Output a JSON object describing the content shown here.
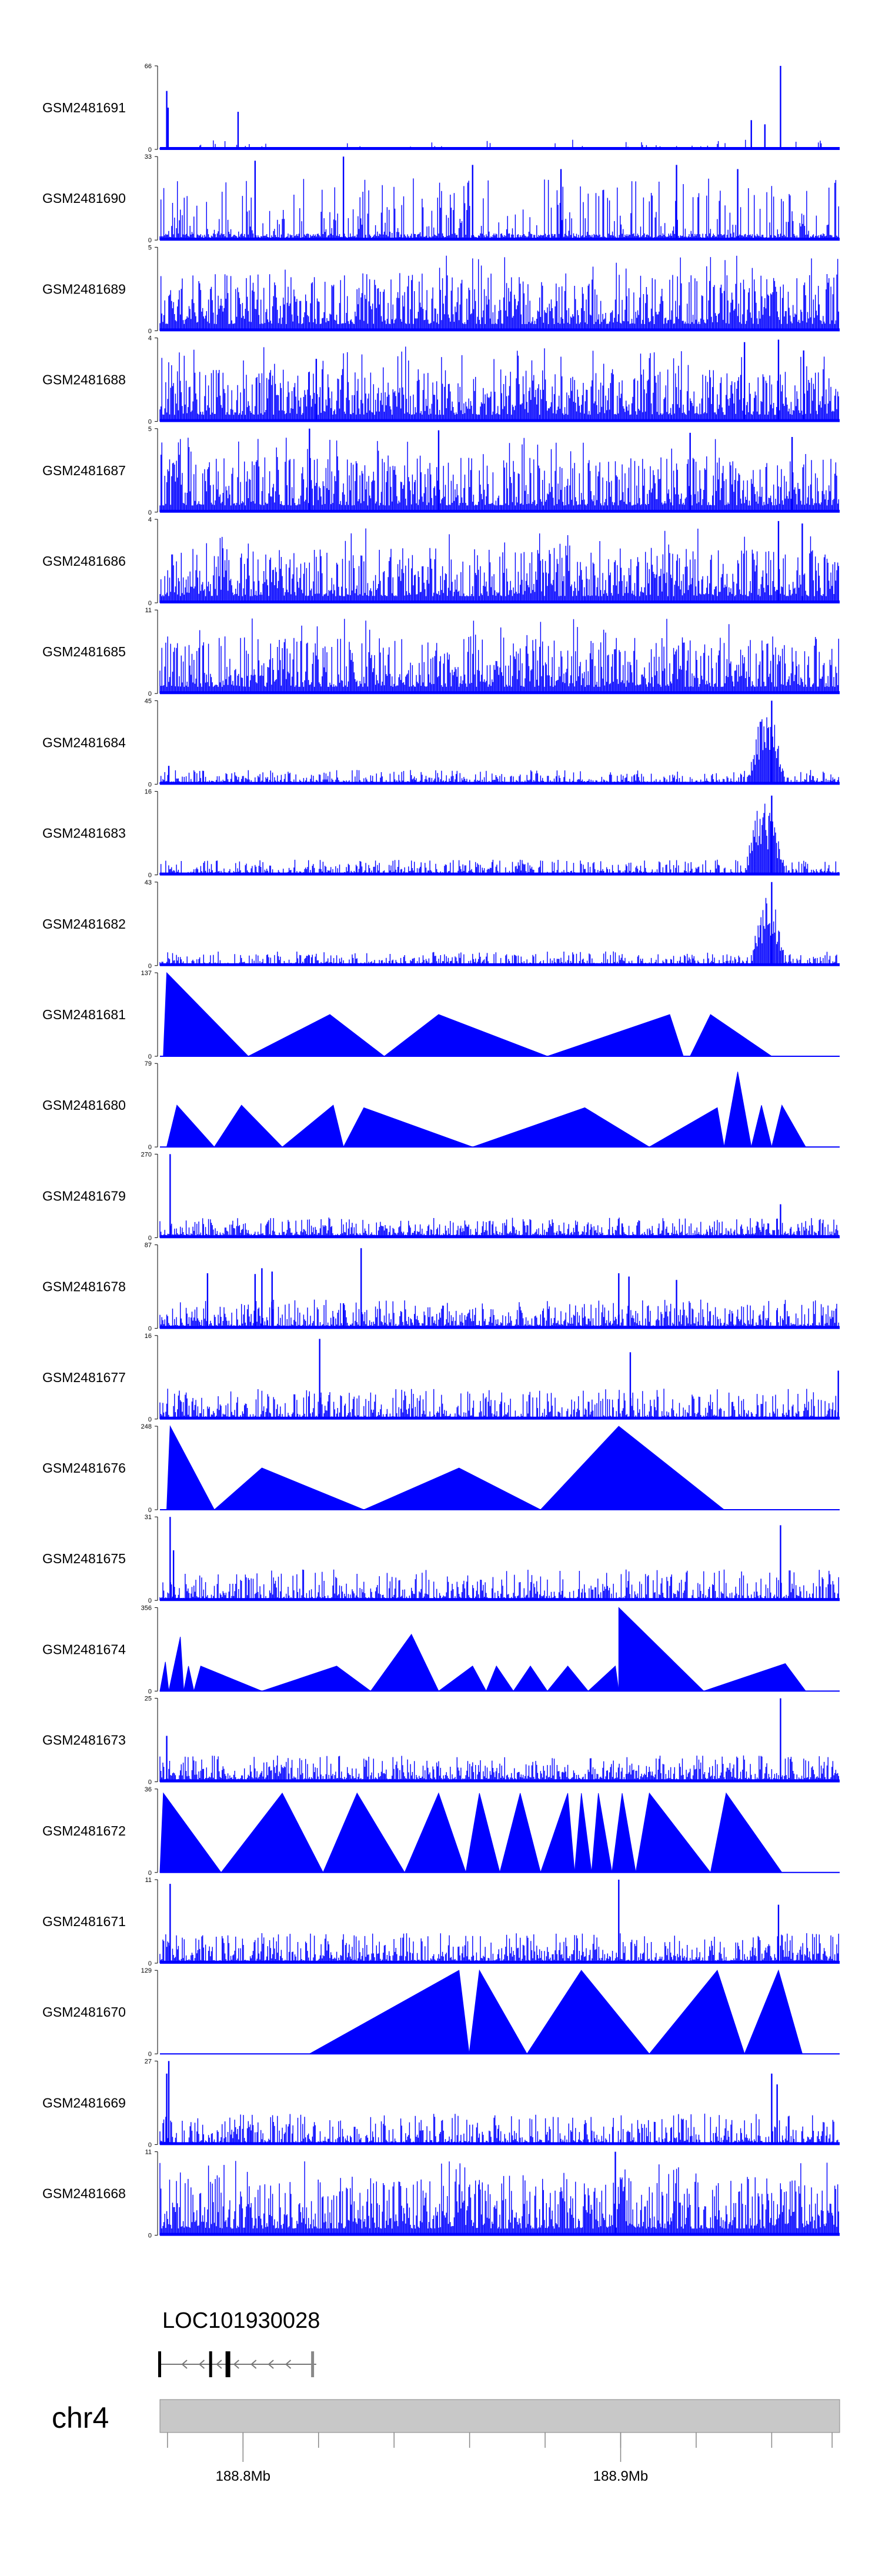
{
  "chart_data": {
    "type": "genome-coverage-tracks",
    "chromosome": "chr4",
    "region_mb": [
      188.778,
      188.958
    ],
    "color": "#0000ff",
    "tracks": [
      {
        "name": "GSM2481691",
        "ymin": 0,
        "ymax": 66,
        "style": "spiky",
        "density": 0.15,
        "peaks": [
          {
            "x": 0.01,
            "h": 0.7
          },
          {
            "x": 0.012,
            "h": 0.5
          },
          {
            "x": 0.115,
            "h": 0.45
          },
          {
            "x": 0.87,
            "h": 0.35
          },
          {
            "x": 0.89,
            "h": 0.3
          },
          {
            "x": 0.913,
            "h": 1.0
          }
        ]
      },
      {
        "name": "GSM2481690",
        "ymin": 0,
        "ymax": 33,
        "style": "mixed",
        "density": 0.45,
        "peaks": [
          {
            "x": 0.14,
            "h": 0.95
          },
          {
            "x": 0.27,
            "h": 1.0
          },
          {
            "x": 0.46,
            "h": 0.9
          },
          {
            "x": 0.59,
            "h": 0.85
          },
          {
            "x": 0.76,
            "h": 0.9
          },
          {
            "x": 0.85,
            "h": 0.85
          }
        ]
      },
      {
        "name": "GSM2481689",
        "ymin": 0,
        "ymax": 5,
        "style": "noisy",
        "density": 0.5,
        "peaks": []
      },
      {
        "name": "GSM2481688",
        "ymin": 0,
        "ymax": 4,
        "style": "noisy",
        "density": 0.4,
        "peaks": [
          {
            "x": 0.23,
            "h": 0.75
          },
          {
            "x": 0.86,
            "h": 0.95
          },
          {
            "x": 0.91,
            "h": 0.98
          },
          {
            "x": 0.947,
            "h": 0.85
          }
        ]
      },
      {
        "name": "GSM2481687",
        "ymin": 0,
        "ymax": 5,
        "style": "noisy",
        "density": 0.45,
        "peaks": [
          {
            "x": 0.22,
            "h": 1.0
          },
          {
            "x": 0.41,
            "h": 0.98
          },
          {
            "x": 0.78,
            "h": 0.95
          },
          {
            "x": 0.93,
            "h": 0.9
          }
        ]
      },
      {
        "name": "GSM2481686",
        "ymin": 0,
        "ymax": 4,
        "style": "noisy",
        "density": 0.45,
        "peaks": [
          {
            "x": 0.91,
            "h": 0.98
          },
          {
            "x": 0.945,
            "h": 0.95
          }
        ]
      },
      {
        "name": "GSM2481685",
        "ymin": 0,
        "ymax": 11,
        "style": "noisy",
        "density": 0.5,
        "peaks": []
      },
      {
        "name": "GSM2481684",
        "ymin": 0,
        "ymax": 45,
        "style": "cluster",
        "density": 0.25,
        "cluster": [
          0.865,
          0.92
        ],
        "peaks": [
          {
            "x": 0.013,
            "h": 0.22
          },
          {
            "x": 0.9,
            "h": 1.0
          }
        ]
      },
      {
        "name": "GSM2481683",
        "ymin": 0,
        "ymax": 16,
        "style": "cluster",
        "density": 0.35,
        "cluster": [
          0.86,
          0.92
        ],
        "peaks": [
          {
            "x": 0.9,
            "h": 0.95
          }
        ]
      },
      {
        "name": "GSM2481682",
        "ymin": 0,
        "ymax": 43,
        "style": "cluster",
        "density": 0.25,
        "cluster": [
          0.87,
          0.92
        ],
        "peaks": [
          {
            "x": 0.9,
            "h": 1.0
          }
        ]
      },
      {
        "name": "GSM2481681",
        "ymin": 0,
        "ymax": 137,
        "style": "triangles",
        "tri": [
          [
            0.005,
            0.01,
            0.13,
            1.0
          ],
          [
            0.13,
            0.25,
            0.33,
            0.5
          ],
          [
            0.33,
            0.41,
            0.57,
            0.5
          ],
          [
            0.57,
            0.75,
            0.77,
            0.5
          ],
          [
            0.78,
            0.81,
            0.9,
            0.5
          ]
        ]
      },
      {
        "name": "GSM2481680",
        "ymin": 0,
        "ymax": 79,
        "style": "triangles",
        "tri": [
          [
            0.01,
            0.025,
            0.08,
            0.5
          ],
          [
            0.08,
            0.12,
            0.18,
            0.5
          ],
          [
            0.18,
            0.255,
            0.27,
            0.5
          ],
          [
            0.27,
            0.3,
            0.46,
            0.47
          ],
          [
            0.46,
            0.625,
            0.72,
            0.47
          ],
          [
            0.72,
            0.82,
            0.83,
            0.47
          ],
          [
            0.83,
            0.85,
            0.87,
            0.9
          ],
          [
            0.87,
            0.885,
            0.9,
            0.5
          ],
          [
            0.9,
            0.915,
            0.95,
            0.5
          ]
        ]
      },
      {
        "name": "GSM2481679",
        "ymin": 0,
        "ymax": 270,
        "style": "small-triangles",
        "density": 0.2,
        "peaks": [
          {
            "x": 0.015,
            "h": 1.0
          },
          {
            "x": 0.68,
            "h": 0.17
          },
          {
            "x": 0.913,
            "h": 0.4
          }
        ]
      },
      {
        "name": "GSM2481678",
        "ymin": 0,
        "ymax": 87,
        "style": "small-triangles",
        "density": 0.55,
        "peaks": [
          {
            "x": 0.07,
            "h": 0.66
          },
          {
            "x": 0.14,
            "h": 0.65
          },
          {
            "x": 0.15,
            "h": 0.72
          },
          {
            "x": 0.165,
            "h": 0.68
          },
          {
            "x": 0.27,
            "h": 0.3
          },
          {
            "x": 0.296,
            "h": 0.96
          },
          {
            "x": 0.675,
            "h": 0.66
          },
          {
            "x": 0.69,
            "h": 0.62
          },
          {
            "x": 0.76,
            "h": 0.58
          }
        ]
      },
      {
        "name": "GSM2481677",
        "ymin": 0,
        "ymax": 16,
        "style": "sparse",
        "density": 0.22,
        "peaks": [
          {
            "x": 0.235,
            "h": 0.96
          },
          {
            "x": 0.692,
            "h": 0.8
          },
          {
            "x": 0.998,
            "h": 0.58
          }
        ]
      },
      {
        "name": "GSM2481676",
        "ymin": 0,
        "ymax": 248,
        "style": "triangles",
        "tri": [
          [
            0.01,
            0.015,
            0.08,
            1.0
          ],
          [
            0.08,
            0.15,
            0.3,
            0.5
          ],
          [
            0.3,
            0.44,
            0.56,
            0.5
          ],
          [
            0.56,
            0.675,
            0.83,
            1.0
          ]
        ]
      },
      {
        "name": "GSM2481675",
        "ymin": 0,
        "ymax": 31,
        "style": "sparse",
        "density": 0.3,
        "peaks": [
          {
            "x": 0.015,
            "h": 1.0
          },
          {
            "x": 0.02,
            "h": 0.6
          },
          {
            "x": 0.913,
            "h": 0.9
          }
        ]
      },
      {
        "name": "GSM2481674",
        "ymin": 0,
        "ymax": 356,
        "style": "triangles",
        "tri": [
          [
            0.0,
            0.008,
            0.013,
            0.35
          ],
          [
            0.013,
            0.03,
            0.035,
            0.65
          ],
          [
            0.035,
            0.042,
            0.05,
            0.3
          ],
          [
            0.05,
            0.06,
            0.15,
            0.3
          ],
          [
            0.15,
            0.26,
            0.31,
            0.3
          ],
          [
            0.31,
            0.37,
            0.41,
            0.68
          ],
          [
            0.41,
            0.46,
            0.48,
            0.3
          ],
          [
            0.48,
            0.495,
            0.52,
            0.3
          ],
          [
            0.52,
            0.545,
            0.57,
            0.3
          ],
          [
            0.57,
            0.6,
            0.63,
            0.3
          ],
          [
            0.63,
            0.67,
            0.675,
            0.3
          ],
          [
            0.675,
            0.675,
            0.8,
            1.0
          ],
          [
            0.8,
            0.92,
            0.95,
            0.33
          ]
        ]
      },
      {
        "name": "GSM2481673",
        "ymin": 0,
        "ymax": 25,
        "style": "small-triangles",
        "density": 0.45,
        "peaks": [
          {
            "x": 0.01,
            "h": 0.55
          },
          {
            "x": 0.913,
            "h": 1.0
          }
        ]
      },
      {
        "name": "GSM2481672",
        "ymin": 0,
        "ymax": 36,
        "style": "triangles",
        "tri": [
          [
            0.0,
            0.005,
            0.09,
            0.95
          ],
          [
            0.09,
            0.18,
            0.24,
            0.95
          ],
          [
            0.24,
            0.29,
            0.36,
            0.95
          ],
          [
            0.36,
            0.41,
            0.45,
            0.95
          ],
          [
            0.45,
            0.47,
            0.5,
            0.95
          ],
          [
            0.5,
            0.53,
            0.56,
            0.95
          ],
          [
            0.56,
            0.6,
            0.61,
            0.95
          ],
          [
            0.61,
            0.62,
            0.635,
            0.95
          ],
          [
            0.635,
            0.645,
            0.665,
            0.95
          ],
          [
            0.665,
            0.68,
            0.7,
            0.95
          ],
          [
            0.7,
            0.72,
            0.81,
            0.95
          ],
          [
            0.81,
            0.833,
            0.915,
            0.95
          ]
        ]
      },
      {
        "name": "GSM2481671",
        "ymin": 0,
        "ymax": 11,
        "style": "small-triangles",
        "density": 0.6,
        "peaks": [
          {
            "x": 0.015,
            "h": 0.95
          },
          {
            "x": 0.675,
            "h": 1.0
          },
          {
            "x": 0.91,
            "h": 0.7
          }
        ]
      },
      {
        "name": "GSM2481670",
        "ymin": 0,
        "ymax": 129,
        "style": "triangles",
        "tri": [
          [
            0.22,
            0.44,
            0.455,
            1.0
          ],
          [
            0.455,
            0.47,
            0.54,
            1.0
          ],
          [
            0.54,
            0.62,
            0.72,
            1.0
          ],
          [
            0.72,
            0.82,
            0.86,
            1.0
          ],
          [
            0.86,
            0.91,
            0.945,
            1.0
          ]
        ]
      },
      {
        "name": "GSM2481669",
        "ymin": 0,
        "ymax": 27,
        "style": "sparse",
        "density": 0.2,
        "peaks": [
          {
            "x": 0.01,
            "h": 0.85
          },
          {
            "x": 0.013,
            "h": 1.0
          },
          {
            "x": 0.9,
            "h": 0.85
          },
          {
            "x": 0.908,
            "h": 0.72
          }
        ]
      },
      {
        "name": "GSM2481668",
        "ymin": 0,
        "ymax": 11,
        "style": "noisy",
        "density": 0.55,
        "peaks": [
          {
            "x": 0.67,
            "h": 1.0
          }
        ]
      }
    ],
    "gene": {
      "name": "LOC101930028",
      "strand": "-",
      "start_frac": 0.0,
      "end_frac": 0.23,
      "exons": [
        0.0,
        0.075,
        0.1,
        0.225
      ]
    },
    "axis": {
      "ticks_mb": [
        188.78,
        188.8,
        188.82,
        188.84,
        188.86,
        188.88,
        188.9,
        188.92,
        188.94,
        188.956
      ],
      "labeled": [
        {
          "mb": 188.8,
          "label": "188.8Mb"
        },
        {
          "mb": 188.9,
          "label": "188.9Mb"
        }
      ]
    }
  }
}
